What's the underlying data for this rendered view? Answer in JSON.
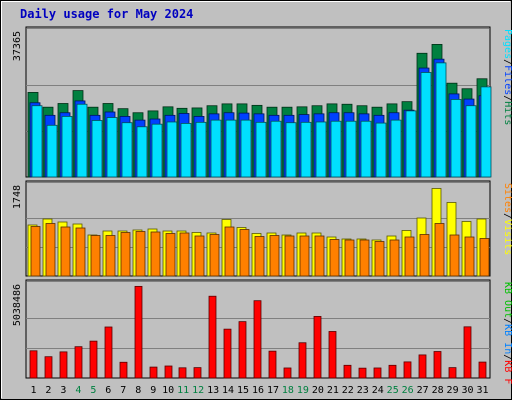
{
  "title": "Daily usage for May 2024",
  "colors": {
    "background": "#c0c0c0",
    "plot": "#c0c0c0",
    "title": "#0000c0",
    "hits": "#008040",
    "files": "#0040ff",
    "pages": "#00e0ff",
    "visits": "#ffff00",
    "sites": "#ff8000",
    "kbf": "#ff0000",
    "kbin": "#0080ff",
    "kbout": "#00c000",
    "weekend_day": "#008040",
    "weekday_day": "#000000"
  },
  "chart_data": [
    {
      "type": "bar",
      "panel": "top",
      "ymax_label": "37365",
      "ylim": [
        0,
        37365
      ],
      "grid": true,
      "legend": [
        "Hits",
        "Files",
        "Pages"
      ],
      "legend_separator": "/",
      "categories": [
        "1",
        "2",
        "3",
        "4",
        "5",
        "6",
        "7",
        "8",
        "9",
        "10",
        "11",
        "12",
        "13",
        "14",
        "15",
        "16",
        "17",
        "18",
        "19",
        "20",
        "21",
        "22",
        "23",
        "24",
        "25",
        "26",
        "27",
        "28",
        "29",
        "30",
        "31"
      ],
      "series": [
        {
          "name": "Hits",
          "values": [
            22900,
            18900,
            19900,
            23400,
            18900,
            19900,
            18500,
            17400,
            17900,
            19000,
            18600,
            18700,
            19300,
            19800,
            19800,
            19400,
            18900,
            18900,
            19000,
            19300,
            19800,
            19700,
            19300,
            18900,
            19800,
            20400,
            33500,
            35900,
            25400,
            23900,
            26600
          ]
        },
        {
          "name": "Files",
          "values": [
            20100,
            16700,
            17400,
            20600,
            16700,
            17600,
            16400,
            15400,
            15700,
            16700,
            17200,
            16400,
            17100,
            17400,
            17300,
            17100,
            16700,
            16700,
            16900,
            17100,
            17400,
            17400,
            17100,
            16700,
            17400,
            18100,
            29500,
            31900,
            22500,
            21100,
            22000
          ]
        },
        {
          "name": "Pages",
          "values": [
            19300,
            14000,
            16400,
            19700,
            15300,
            16100,
            14700,
            13600,
            14300,
            14900,
            14500,
            14800,
            15400,
            15400,
            15400,
            14800,
            15100,
            14700,
            14800,
            14900,
            15100,
            15100,
            15100,
            14600,
            15400,
            17900,
            28300,
            30900,
            21000,
            19300,
            24400
          ]
        }
      ]
    },
    {
      "type": "bar",
      "panel": "middle",
      "ymax_label": "1748",
      "ylim": [
        0,
        1748
      ],
      "grid": true,
      "legend": [
        "Visits",
        "Sites"
      ],
      "legend_separator": "/",
      "categories": [
        "1",
        "2",
        "3",
        "4",
        "5",
        "6",
        "7",
        "8",
        "9",
        "10",
        "11",
        "12",
        "13",
        "14",
        "15",
        "16",
        "17",
        "18",
        "19",
        "20",
        "21",
        "22",
        "23",
        "24",
        "25",
        "26",
        "27",
        "28",
        "29",
        "30",
        "31"
      ],
      "series": [
        {
          "name": "Visits",
          "values": [
            1020,
            1140,
            1080,
            1040,
            820,
            900,
            900,
            920,
            940,
            900,
            900,
            870,
            860,
            1130,
            970,
            850,
            860,
            820,
            860,
            860,
            780,
            740,
            740,
            720,
            800,
            910,
            1160,
            1750,
            1470,
            1090,
            1140
          ]
        },
        {
          "name": "Sites",
          "values": [
            990,
            1050,
            980,
            960,
            810,
            810,
            870,
            890,
            880,
            850,
            860,
            800,
            830,
            980,
            930,
            790,
            810,
            800,
            800,
            800,
            730,
            720,
            720,
            690,
            720,
            780,
            830,
            1050,
            820,
            780,
            750
          ]
        }
      ]
    },
    {
      "type": "bar",
      "panel": "bottom",
      "ymax_label": "5038486",
      "ylim": [
        0,
        5038486
      ],
      "grid": true,
      "legend": [
        "KB F",
        "KB In",
        "KB Out"
      ],
      "legend_separator": "/",
      "categories": [
        "1",
        "2",
        "3",
        "4",
        "5",
        "6",
        "7",
        "8",
        "9",
        "10",
        "11",
        "12",
        "13",
        "14",
        "15",
        "16",
        "17",
        "18",
        "19",
        "20",
        "21",
        "22",
        "23",
        "24",
        "25",
        "26",
        "27",
        "28",
        "29",
        "30",
        "31"
      ],
      "x_ticks": [
        "1",
        "2",
        "3",
        "4",
        "5",
        "6",
        "7",
        "8",
        "9",
        "10",
        "11",
        "12",
        "13",
        "14",
        "15",
        "16",
        "17",
        "18",
        "19",
        "20",
        "21",
        "22",
        "23",
        "24",
        "25",
        "26",
        "27",
        "28",
        "29",
        "30",
        "31"
      ],
      "weekend_ticks": [
        "4",
        "5",
        "11",
        "12",
        "18",
        "19",
        "25",
        "26"
      ],
      "series": [
        {
          "name": "KB F",
          "values": [
            1520000,
            1190000,
            1460000,
            1750000,
            2060000,
            2850000,
            880000,
            5120000,
            610000,
            670000,
            570000,
            580000,
            4570000,
            2730000,
            3150000,
            4320000,
            1500000,
            560000,
            1970000,
            3440000,
            2600000,
            710000,
            550000,
            560000,
            710000,
            900000,
            1290000,
            1480000,
            580000,
            2860000,
            890000
          ]
        }
      ]
    }
  ]
}
